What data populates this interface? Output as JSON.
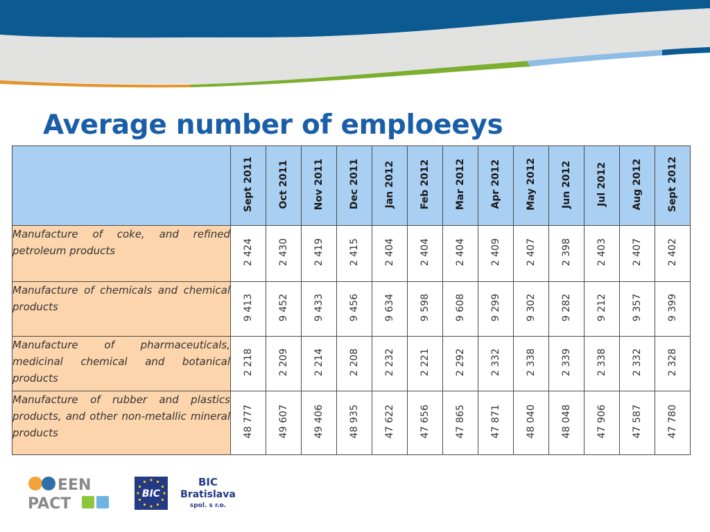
{
  "slide": {
    "title": "Average number of emploeeys"
  },
  "colors": {
    "title": "#1a5ea8",
    "header_fill": "#a9cff2",
    "label_fill": "#fdd5ad",
    "banner_blue": "#0b5a92",
    "banner_green": "#7cae2f",
    "banner_orange": "#e1952f"
  },
  "chart_data": {
    "type": "table",
    "columns": [
      "Sept 2011",
      "Oct 2011",
      "Nov 2011",
      "Dec 2011",
      "Jan 2012",
      "Feb 2012",
      "Mar 2012",
      "Apr 2012",
      "May 2012",
      "Jun 2012",
      "Jul 2012",
      "Aug 2012",
      "Sept 2012"
    ],
    "rows": [
      {
        "label": "Manufacture of coke, and refined petroleum products",
        "values": [
          "2 424",
          "2 430",
          "2 419",
          "2 415",
          "2 404",
          "2 404",
          "2 404",
          "2 409",
          "2 407",
          "2 398",
          "2 403",
          "2 407",
          "2 402"
        ]
      },
      {
        "label": "Manufacture of chemicals and chemical products",
        "values": [
          "9 413",
          "9 452",
          "9 433",
          "9 456",
          "9 634",
          "9 598",
          "9 608",
          "9 299",
          "9 302",
          "9 282",
          "9 212",
          "9 357",
          "9 399"
        ]
      },
      {
        "label": "Manufacture of pharmaceuticals, medicinal chemical and botanical products",
        "values": [
          "2 218",
          "2 209",
          "2 214",
          "2 208",
          "2 232",
          "2 221",
          "2 292",
          "2 332",
          "2 338",
          "2 339",
          "2 338",
          "2 332",
          "2 328"
        ]
      },
      {
        "label": "Manufacture of rubber and plastics products, and other non-metallic mineral products",
        "values": [
          "48 777",
          "49 607",
          "49 406",
          "48 935",
          "47 622",
          "47 656",
          "47 865",
          "47 871",
          "48 040",
          "48 048",
          "47 906",
          "47 587",
          "47 780"
        ]
      }
    ]
  },
  "logos": {
    "een": {
      "line1": "EEN",
      "line2": "PACT"
    },
    "bic": {
      "badge": "BIC",
      "line1": "BIC",
      "line2": "Bratislava",
      "line3": "spol. s r.o."
    }
  }
}
